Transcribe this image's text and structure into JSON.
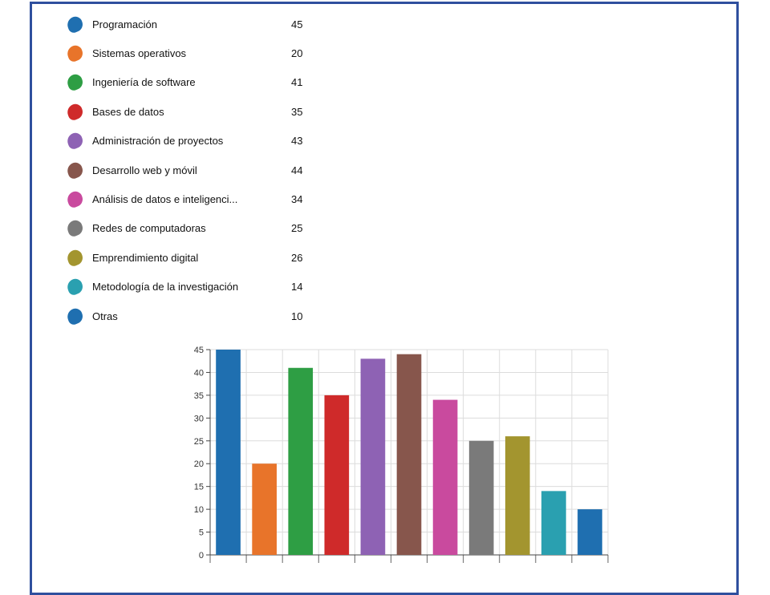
{
  "chart_data": {
    "type": "bar",
    "categories": [
      "Programación",
      "Sistemas operativos",
      "Ingeniería de software",
      "Bases de datos",
      "Administración de proyectos",
      "Desarrollo web y móvil",
      "Análisis de datos e inteligenci...",
      "Redes de computadoras",
      "Emprendimiento digital",
      "Metodología de la investigación",
      "Otras"
    ],
    "values": [
      45,
      20,
      41,
      35,
      43,
      44,
      34,
      25,
      26,
      14,
      10
    ],
    "colors": [
      "#1f6fb0",
      "#e8742a",
      "#2e9e44",
      "#cf2a2a",
      "#8e62b4",
      "#87564c",
      "#c94a9e",
      "#7a7a7a",
      "#a3952f",
      "#2aa0b0",
      "#1f6fb0"
    ],
    "title": "",
    "xlabel": "",
    "ylabel": "",
    "ylim": [
      0,
      45
    ],
    "yticks": [
      0,
      5,
      10,
      15,
      20,
      25,
      30,
      35,
      40,
      45
    ],
    "grid": true,
    "legend": "top-left"
  }
}
